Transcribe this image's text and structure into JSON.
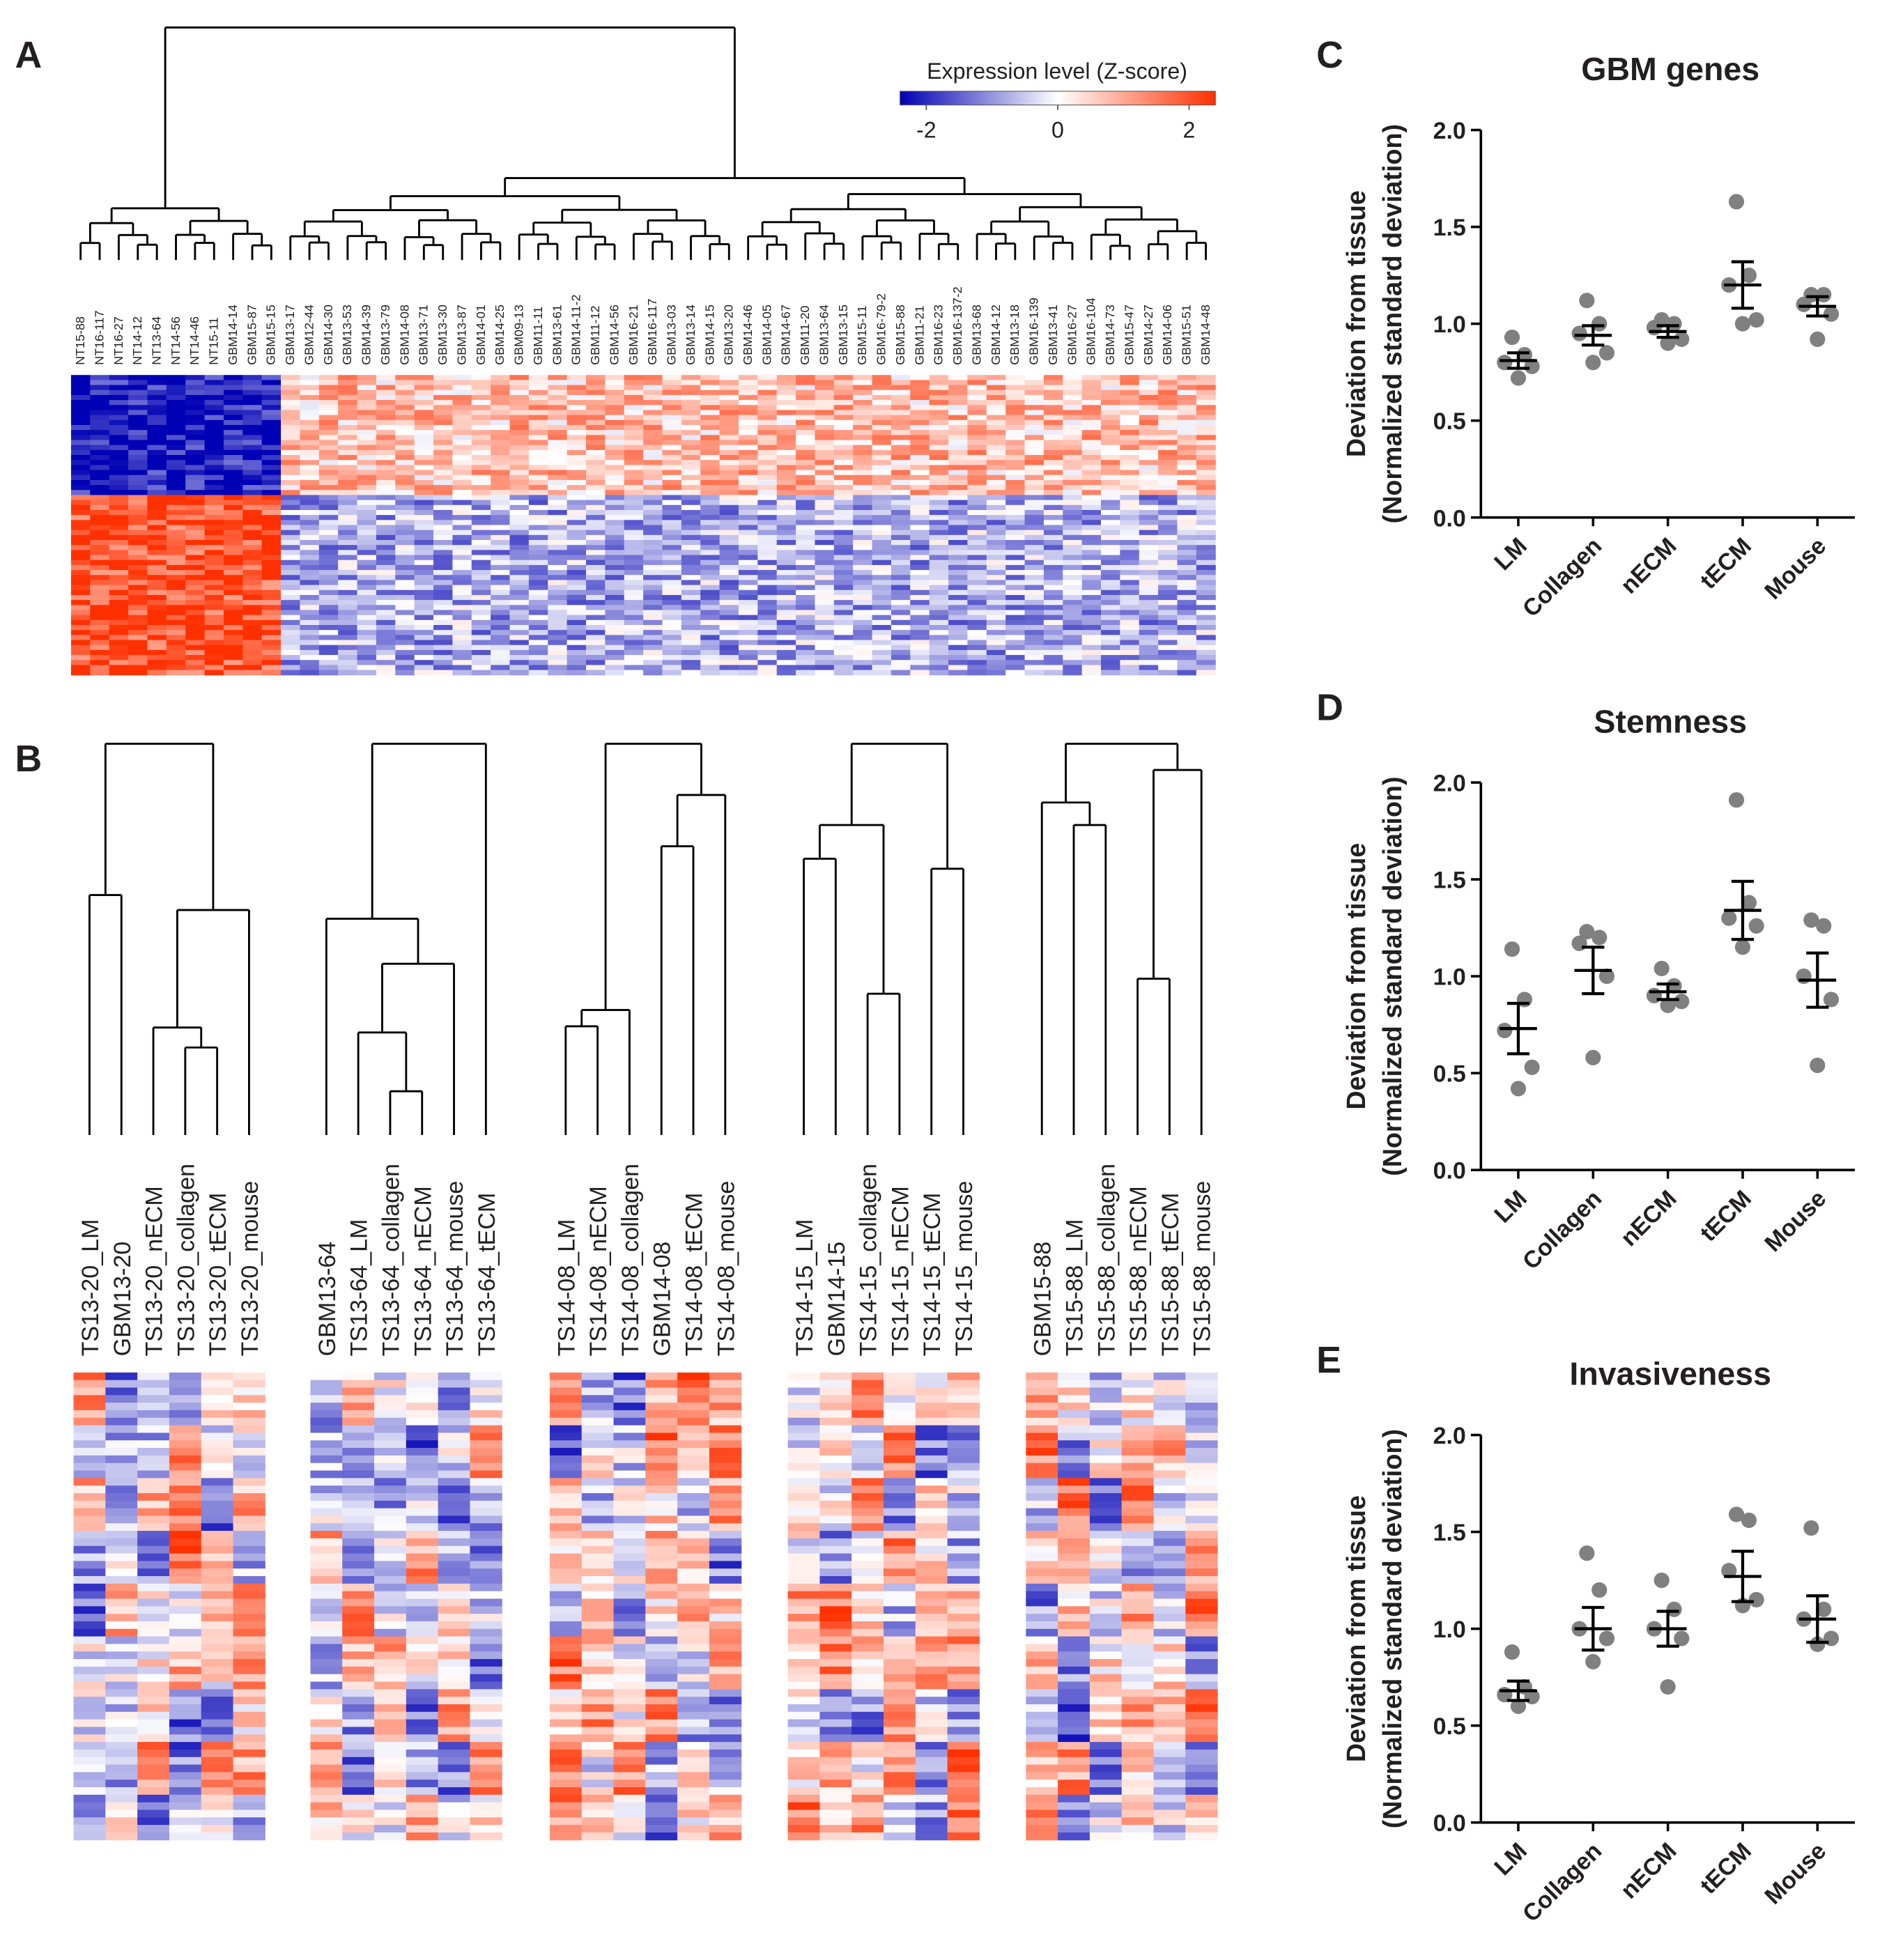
{
  "chart_data": [
    {
      "type": "heatmap",
      "panel": "A",
      "title": "Expression level (Z-score)",
      "clim": [
        -2.4,
        2.4
      ],
      "cticks": [
        -2,
        0,
        2
      ],
      "colors": [
        "#0000b4",
        "#ffffff",
        "#ff3000"
      ],
      "columns": [
        "NT15-88",
        "NT16-117",
        "NT16-27",
        "NT14-12",
        "NT13-64",
        "NT14-56",
        "NT14-46",
        "NT15-11",
        "GBM14-14",
        "GBM15-87",
        "GBM15-15",
        "GBM13-17",
        "GBM12-44",
        "GBM14-30",
        "GBM13-53",
        "GBM14-39",
        "GBM13-79",
        "GBM14-08",
        "GBM13-71",
        "GBM13-30",
        "GBM13-87",
        "GBM14-01",
        "GBM14-25",
        "GBM09-13",
        "GBM11-11",
        "GBM13-61",
        "GBM14-11-2",
        "GBM11-12",
        "GBM14-56",
        "GBM16-21",
        "GBM16-117",
        "GBM13-03",
        "GBM13-14",
        "GBM14-15",
        "GBM13-20",
        "GBM14-46",
        "GBM14-05",
        "GBM14-67",
        "GBM11-20",
        "GBM13-64",
        "GBM13-15",
        "GBM15-11",
        "GBM16-79-2",
        "GBM15-88",
        "GBM11-21",
        "GBM16-23",
        "GBM16-137-2",
        "GBM13-68",
        "GBM14-12",
        "GBM13-18",
        "GBM16-139",
        "GBM13-41",
        "GBM16-27",
        "GBM16-104",
        "GBM14-73",
        "GBM15-47",
        "GBM14-27",
        "GBM14-06",
        "GBM15-51",
        "GBM14-48"
      ]
    },
    {
      "type": "heatmap",
      "panel": "B",
      "groups": [
        [
          "TS13-20_LM",
          "GBM13-20",
          "TS13-20_nECM",
          "TS13-20_collagen",
          "TS13-20_tECM",
          "TS13-20_mouse"
        ],
        [
          "GBM13-64",
          "TS13-64_LM",
          "TS13-64_collagen",
          "TS13-64_nECM",
          "TS13-64_mouse",
          "TS13-64_tECM"
        ],
        [
          "TS14-08_LM",
          "TS14-08_nECM",
          "TS14-08_collagen",
          "GBM14-08",
          "TS14-08_tECM",
          "TS14-08_mouse"
        ],
        [
          "TS14-15_LM",
          "GBM14-15",
          "TS14-15_collagen",
          "TS14-15_nECM",
          "TS14-15_tECM",
          "TS14-15_mouse"
        ],
        [
          "GBM15-88",
          "TS15-88_LM",
          "TS15-88_collagen",
          "TS15-88_nECM",
          "TS15-88_tECM",
          "TS15-88_mouse"
        ]
      ]
    },
    {
      "type": "dot",
      "panel": "C",
      "title": "GBM genes",
      "ylabel": [
        "Deviation from tissue",
        "(Normalized standard deviation)"
      ],
      "categories": [
        "LM",
        "Collagen",
        "nECM",
        "tECM",
        "Mouse"
      ],
      "points": [
        [
          0.72,
          0.78,
          0.8,
          0.84,
          0.93
        ],
        [
          0.8,
          0.85,
          0.95,
          1.0,
          1.12
        ],
        [
          0.9,
          0.92,
          0.98,
          1.0,
          1.02
        ],
        [
          1.0,
          1.02,
          1.2,
          1.25,
          1.63
        ],
        [
          0.92,
          1.05,
          1.1,
          1.15,
          1.15
        ]
      ],
      "means": [
        0.81,
        0.94,
        0.96,
        1.2,
        1.09
      ],
      "sem": [
        0.04,
        0.05,
        0.03,
        0.12,
        0.05
      ],
      "ylim": [
        0,
        2
      ],
      "yticks": [
        {
          "value": 0,
          "label": "0.0"
        },
        {
          "value": 0.5,
          "label": "0.5"
        },
        {
          "value": 1,
          "label": "1.0"
        },
        {
          "value": 1.5,
          "label": "1.5"
        },
        {
          "value": 2,
          "label": "2.0"
        }
      ],
      "point_color": "#808080",
      "line_color": "#000000"
    },
    {
      "type": "dot",
      "panel": "D",
      "title": "Stemness",
      "ylabel": [
        "Deviation from tissue",
        "(Normalized standard deviation)"
      ],
      "categories": [
        "LM",
        "Collagen",
        "nECM",
        "tECM",
        "Mouse"
      ],
      "points": [
        [
          0.42,
          0.53,
          0.72,
          0.88,
          1.14
        ],
        [
          0.58,
          1.0,
          1.17,
          1.2,
          1.23
        ],
        [
          0.85,
          0.87,
          0.9,
          0.95,
          1.04
        ],
        [
          1.15,
          1.26,
          1.3,
          1.38,
          1.91
        ],
        [
          0.54,
          0.88,
          1.0,
          1.26,
          1.29
        ]
      ],
      "means": [
        0.73,
        1.03,
        0.92,
        1.34,
        0.98
      ],
      "sem": [
        0.13,
        0.12,
        0.04,
        0.15,
        0.14
      ],
      "ylim": [
        0,
        2
      ],
      "yticks": [
        {
          "value": 0,
          "label": "0.0"
        },
        {
          "value": 0.5,
          "label": "0.5"
        },
        {
          "value": 1,
          "label": "1.0"
        },
        {
          "value": 1.5,
          "label": "1.5"
        },
        {
          "value": 2,
          "label": "2.0"
        }
      ],
      "point_color": "#808080",
      "line_color": "#000000"
    },
    {
      "type": "dot",
      "panel": "E",
      "title": "Invasiveness",
      "ylabel": [
        "Deviation from tissue",
        "(Normalized standard deviation)"
      ],
      "categories": [
        "LM",
        "Collagen",
        "nECM",
        "tECM",
        "Mouse"
      ],
      "points": [
        [
          0.6,
          0.65,
          0.66,
          0.7,
          0.88
        ],
        [
          0.83,
          0.95,
          1.0,
          1.2,
          1.39
        ],
        [
          0.7,
          0.95,
          1.0,
          1.1,
          1.25
        ],
        [
          1.12,
          1.15,
          1.3,
          1.56,
          1.59
        ],
        [
          0.92,
          0.95,
          1.05,
          1.1,
          1.52
        ]
      ],
      "means": [
        0.68,
        1.0,
        1.0,
        1.27,
        1.05
      ],
      "sem": [
        0.05,
        0.11,
        0.09,
        0.13,
        0.12
      ],
      "ylim": [
        0,
        2
      ],
      "yticks": [
        {
          "value": 0,
          "label": "0.0"
        },
        {
          "value": 0.5,
          "label": "0.5"
        },
        {
          "value": 1,
          "label": "1.0"
        },
        {
          "value": 1.5,
          "label": "1.5"
        },
        {
          "value": 2,
          "label": "2.0"
        }
      ],
      "point_color": "#808080",
      "line_color": "#000000"
    }
  ]
}
